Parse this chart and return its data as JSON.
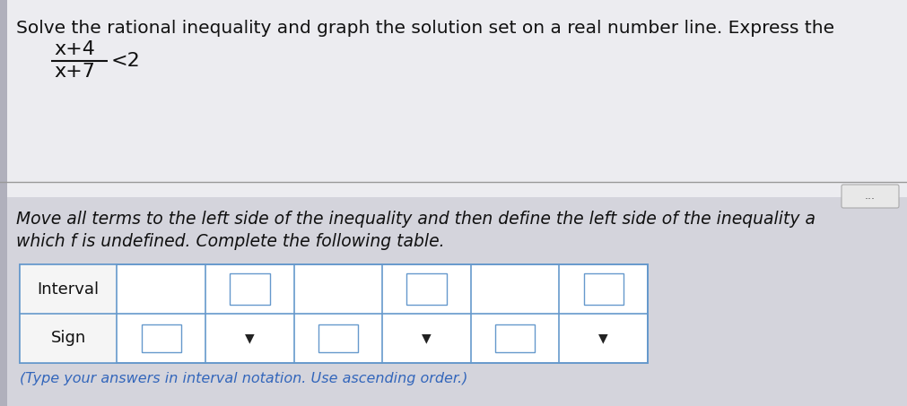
{
  "bg_top": "#e8e8ec",
  "bg_bottom": "#c8c8d0",
  "white_panel_color": "#f0f0f4",
  "title_text": "Solve the rational inequality and graph the solution set on a real number line. Express the",
  "title_fontsize": 14.5,
  "formula_numerator": "x+4",
  "formula_denominator": "x+7",
  "formula_rhs": "<2",
  "body_text_line1": "Move all terms to the left side of the inequality and then define the left side of the inequality a",
  "body_text_line2": "which f is undefined. Complete the following table.",
  "body_fontsize": 13.5,
  "footer_text": "(Type your answers in interval notation. Use ascending order.)",
  "footer_fontsize": 11.5,
  "cell_border_color": "#6699cc",
  "table_bg": "#ffffff",
  "arrow_color": "#222222",
  "dots_text": "...",
  "label_col_bg": "#f5f5f5"
}
